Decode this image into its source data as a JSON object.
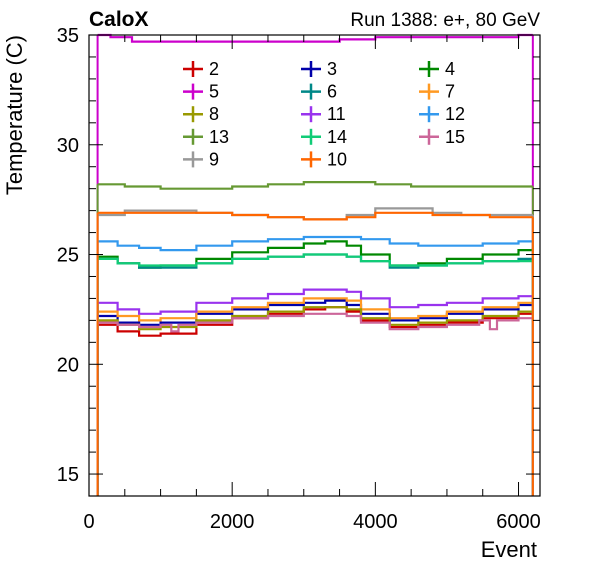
{
  "header": {
    "experiment": "CaloX",
    "run_info": "Run 1388: e+, 80 GeV"
  },
  "chart_data": {
    "type": "line",
    "xlabel": "Event",
    "ylabel": "Temperature (C)",
    "xlim": [
      0,
      6300
    ],
    "ylim": [
      14,
      35
    ],
    "xticks": [
      "0",
      "2000",
      "4000",
      "6000"
    ],
    "yticks": [
      "15",
      "20",
      "25",
      "30",
      "35"
    ],
    "x_start": 120,
    "x_end": 6200,
    "grid": false,
    "legend_position": "top",
    "series": [
      {
        "name": "2",
        "color": "#cc0000",
        "x": [
          120,
          400,
          700,
          1000,
          1500,
          2000,
          2500,
          3000,
          3300,
          3600,
          3800,
          4200,
          4600,
          5000,
          5500,
          6000,
          6200
        ],
        "y": [
          21.8,
          21.5,
          21.3,
          21.4,
          21.8,
          22.1,
          22.3,
          22.5,
          22.6,
          22.4,
          22.0,
          21.7,
          21.8,
          21.9,
          22.1,
          22.3,
          22.3
        ]
      },
      {
        "name": "3",
        "color": "#0000aa",
        "x": [
          120,
          400,
          700,
          1000,
          1500,
          2000,
          2500,
          3000,
          3300,
          3600,
          3800,
          4200,
          4600,
          5000,
          5500,
          6000,
          6200
        ],
        "y": [
          22.2,
          21.9,
          21.8,
          21.9,
          22.3,
          22.5,
          22.7,
          22.8,
          22.9,
          22.7,
          22.3,
          22.0,
          22.1,
          22.3,
          22.5,
          22.7,
          22.7
        ]
      },
      {
        "name": "4",
        "color": "#008800",
        "x": [
          120,
          400,
          700,
          1000,
          1500,
          2000,
          2500,
          3000,
          3300,
          3600,
          3800,
          4200,
          4600,
          5000,
          5500,
          6000,
          6200
        ],
        "y": [
          24.9,
          24.6,
          24.4,
          24.5,
          24.8,
          25.1,
          25.3,
          25.5,
          25.6,
          25.4,
          25.0,
          24.5,
          24.6,
          24.8,
          25.0,
          25.2,
          25.3
        ]
      },
      {
        "name": "5",
        "color": "#cc00cc",
        "x": [
          120,
          300,
          600,
          1000,
          1500,
          2000,
          2500,
          3000,
          3500,
          4000,
          4500,
          5000,
          5500,
          6000,
          6200
        ],
        "y": [
          35.0,
          34.9,
          34.7,
          34.7,
          34.7,
          34.7,
          34.7,
          34.7,
          34.8,
          34.9,
          34.9,
          34.9,
          34.9,
          35.0,
          35.0
        ]
      },
      {
        "name": "6",
        "color": "#008888",
        "x": [
          120,
          400,
          700,
          1000,
          1500,
          2000,
          2500,
          3000,
          3300,
          3600,
          3800,
          4200,
          4600,
          5000,
          5500,
          6000,
          6200
        ],
        "y": [
          24.8,
          24.6,
          24.4,
          24.4,
          24.6,
          24.8,
          24.9,
          25.0,
          25.0,
          24.9,
          24.7,
          24.4,
          24.5,
          24.6,
          24.7,
          24.8,
          24.8
        ]
      },
      {
        "name": "7",
        "color": "#ff9922",
        "x": [
          120,
          400,
          700,
          1000,
          1500,
          2000,
          2500,
          3000,
          3300,
          3600,
          3800,
          4200,
          4600,
          5000,
          5500,
          6000,
          6200
        ],
        "y": [
          22.4,
          22.2,
          22.0,
          22.1,
          22.4,
          22.6,
          22.8,
          23.0,
          23.0,
          22.9,
          22.5,
          22.1,
          22.2,
          22.4,
          22.6,
          22.8,
          22.8
        ]
      },
      {
        "name": "8",
        "color": "#999900",
        "x": [
          120,
          400,
          700,
          1000,
          1500,
          2000,
          2500,
          3000,
          3300,
          3600,
          3800,
          4200,
          4600,
          5000,
          5500,
          6000,
          6200
        ],
        "y": [
          22.0,
          21.8,
          21.6,
          21.7,
          22.0,
          22.2,
          22.4,
          22.6,
          22.6,
          22.5,
          22.1,
          21.8,
          21.9,
          22.0,
          22.2,
          22.4,
          22.4
        ]
      },
      {
        "name": "11",
        "color": "#9933ee",
        "x": [
          120,
          400,
          700,
          1000,
          1500,
          2000,
          2500,
          3000,
          3300,
          3600,
          3800,
          4200,
          4600,
          5000,
          5500,
          6000,
          6200
        ],
        "y": [
          22.8,
          22.5,
          22.3,
          22.4,
          22.8,
          23.0,
          23.2,
          23.4,
          23.4,
          23.3,
          23.0,
          22.6,
          22.7,
          22.8,
          23.0,
          23.1,
          23.1
        ]
      },
      {
        "name": "12",
        "color": "#3399ee",
        "x": [
          120,
          400,
          700,
          1000,
          1500,
          2000,
          2500,
          3000,
          3300,
          3600,
          3800,
          4200,
          4600,
          5000,
          5500,
          6000,
          6200
        ],
        "y": [
          25.6,
          25.4,
          25.3,
          25.2,
          25.4,
          25.6,
          25.7,
          25.8,
          25.8,
          25.8,
          25.7,
          25.5,
          25.4,
          25.4,
          25.5,
          25.6,
          25.6
        ]
      },
      {
        "name": "13",
        "color": "#669933",
        "x": [
          120,
          500,
          1000,
          1500,
          2000,
          2500,
          3000,
          3500,
          4000,
          4500,
          5000,
          5500,
          6000,
          6200
        ],
        "y": [
          28.2,
          28.1,
          28.0,
          28.0,
          28.1,
          28.2,
          28.3,
          28.3,
          28.2,
          28.1,
          28.1,
          28.1,
          28.1,
          28.1
        ]
      },
      {
        "name": "14",
        "color": "#11cc77",
        "x": [
          120,
          400,
          700,
          1000,
          1500,
          2000,
          2500,
          3000,
          3300,
          3600,
          3800,
          4200,
          4600,
          5000,
          5500,
          6000,
          6200
        ],
        "y": [
          24.8,
          24.6,
          24.5,
          24.5,
          24.6,
          24.8,
          24.9,
          25.0,
          25.0,
          24.9,
          24.7,
          24.5,
          24.5,
          24.6,
          24.7,
          24.7,
          24.8
        ]
      },
      {
        "name": "15",
        "color": "#cc6699",
        "x": [
          120,
          400,
          700,
          1000,
          1150,
          1250,
          1500,
          2000,
          2500,
          3000,
          3300,
          3600,
          3800,
          4200,
          4600,
          5000,
          5450,
          5600,
          5700,
          6000,
          6200
        ],
        "y": [
          21.9,
          21.8,
          21.7,
          21.8,
          21.5,
          21.8,
          21.9,
          22.1,
          22.2,
          22.3,
          22.3,
          22.2,
          21.9,
          21.6,
          21.7,
          21.8,
          22.0,
          21.6,
          22.0,
          22.1,
          22.2
        ]
      },
      {
        "name": "9",
        "color": "#999999",
        "x": [
          120,
          500,
          1000,
          1500,
          2000,
          2500,
          3000,
          3300,
          3600,
          4000,
          4400,
          4800,
          5200,
          5600,
          6000,
          6200
        ],
        "y": [
          26.8,
          27.0,
          27.0,
          26.9,
          26.8,
          26.7,
          26.6,
          26.6,
          26.8,
          27.1,
          27.1,
          26.9,
          26.8,
          26.8,
          26.8,
          26.8
        ]
      },
      {
        "name": "10",
        "color": "#ff6600",
        "x": [
          120,
          500,
          1000,
          1500,
          2000,
          2500,
          3000,
          3300,
          3600,
          4000,
          4400,
          4800,
          5200,
          5600,
          6000,
          6200
        ],
        "y": [
          26.9,
          26.9,
          26.9,
          26.9,
          26.8,
          26.7,
          26.6,
          26.6,
          26.7,
          26.9,
          26.9,
          26.8,
          26.8,
          26.7,
          26.7,
          26.7
        ]
      }
    ]
  }
}
